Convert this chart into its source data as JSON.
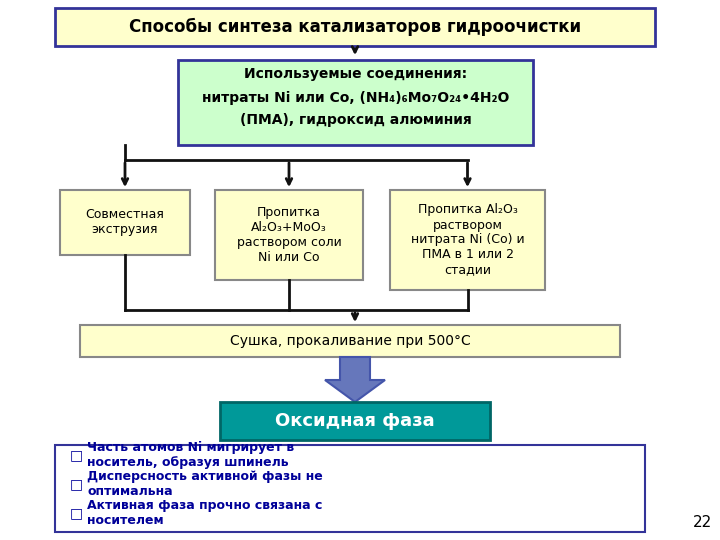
{
  "title": "Способы синтеза катализаторов гидроочистки",
  "title_bg": "#FFFFCC",
  "title_border": "#333399",
  "box_used_line1": "Используемые соединения:",
  "box_used_line2": "нитраты Ni или Co, (NH₄)₆Mo₇O₂₄•4H₂O",
  "box_used_line3": "(ПМА), гидроксид алюминия",
  "box_used_bg": "#CCFFCC",
  "box_used_border": "#333399",
  "box1_text": "Совместная\nэкструзия",
  "box2_text": "Пропитка\nAl₂O₃+MoO₃\nраствором соли\nNi или Co",
  "box3_text": "Пропитка Al₂O₃\nраствором\nнитрата Ni (Co) и\nПМА в 1 или 2\nстадии",
  "boxes_bg": "#FFFFCC",
  "boxes_border": "#888888",
  "box_drying_text": "Сушка, прокаливание при 500°С",
  "box_drying_bg": "#FFFFCC",
  "box_drying_border": "#888888",
  "box_oxide_text": "Оксидная фаза",
  "box_oxide_bg": "#009999",
  "box_oxide_border": "#006666",
  "bullet_box_bg": "#FFFFFF",
  "bullet_box_border": "#333399",
  "bullets": [
    "Часть атомов Ni мигрирует в\nноситель, образуя шпинель",
    "Дисперсность активной фазы не\nоптимальна",
    "Активная фаза прочно связана с\nносителем"
  ],
  "bullet_color": "#000099",
  "slide_number": "22",
  "bg_color": "#FFFFFF",
  "arrow_color_black": "#111111",
  "arrow_color_blue": "#6677BB"
}
